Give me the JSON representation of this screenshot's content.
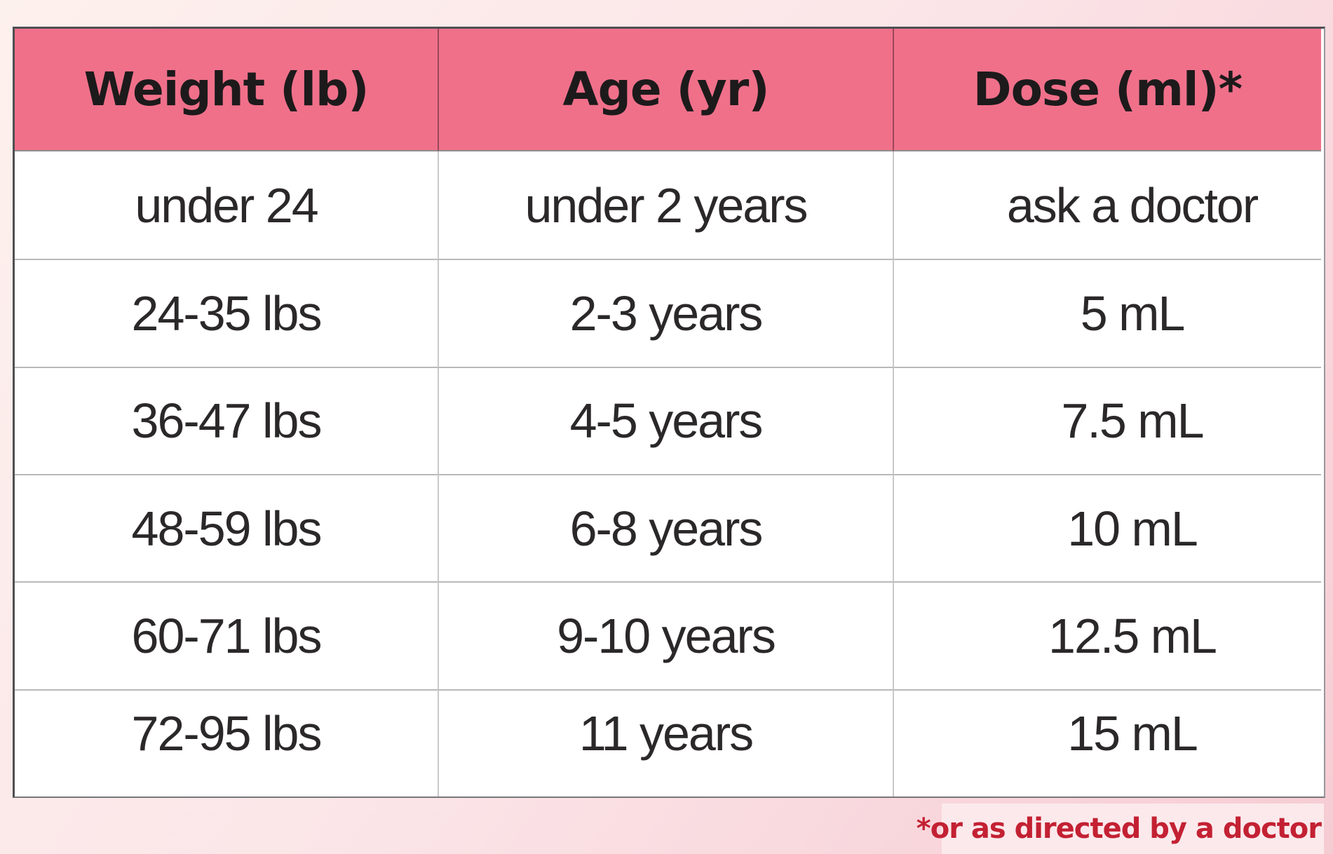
{
  "chart_data": {
    "type": "table",
    "title": "",
    "columns": [
      "Weight (lb)",
      "Age (yr)",
      "Dose (ml)*"
    ],
    "rows": [
      [
        "under 24",
        "under 2 years",
        "ask a doctor"
      ],
      [
        "24-35 lbs",
        "2-3 years",
        "5 mL"
      ],
      [
        "36-47 lbs",
        "4-5 years",
        "7.5 mL"
      ],
      [
        "48-59 lbs",
        "6-8 years",
        "10 mL"
      ],
      [
        "60-71 lbs",
        "9-10 years",
        "12.5 mL"
      ],
      [
        "72-95 lbs",
        "11 years",
        "15 mL"
      ]
    ],
    "footnote": "*or as directed by a doctor"
  },
  "table": {
    "headers": [
      "Weight (lb)",
      "Age (yr)",
      "Dose (ml)*"
    ],
    "rows": [
      [
        "under 24",
        "under 2 years",
        "ask a doctor"
      ],
      [
        "24-35 lbs",
        "2-3 years",
        "5 mL"
      ],
      [
        "36-47 lbs",
        "4-5 years",
        "7.5 mL"
      ],
      [
        "48-59 lbs",
        "6-8 years",
        "10 mL"
      ],
      [
        "60-71 lbs",
        "9-10 years",
        "12.5 mL"
      ],
      [
        "72-95 lbs",
        "11 years",
        "15 mL"
      ]
    ]
  },
  "footnote": {
    "text": "*or as directed by a doctor"
  },
  "colors": {
    "header_bg": "#f0708a",
    "header_text": "#1d1a1b",
    "body_text": "#2b2829",
    "footnote_text": "#c32133",
    "footnote_bg": "#fce9ec",
    "bg_top_left": "#fdf1ed",
    "bg_mid": "#fbe5e8",
    "bg_bottom": "#f6ccd3"
  }
}
